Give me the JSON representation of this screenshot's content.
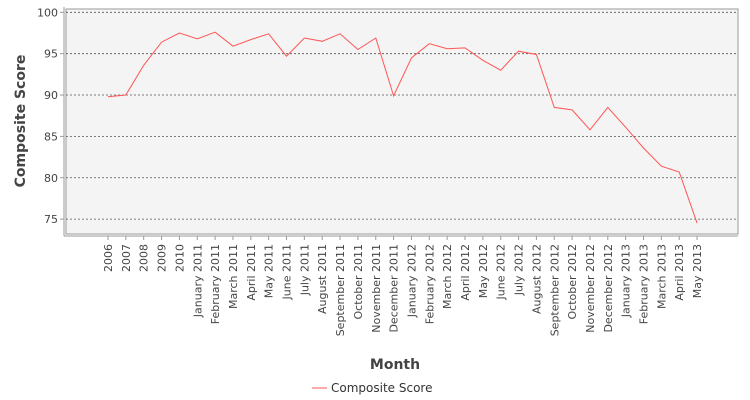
{
  "chart_data": {
    "type": "line",
    "title": "",
    "xlabel": "Month",
    "ylabel": "Composite Score",
    "ylim": [
      73.2,
      100.4
    ],
    "yticks": [
      75,
      80,
      85,
      90,
      95,
      100
    ],
    "grid": true,
    "legend_position": "bottom-center",
    "categories": [
      "2006",
      "2007",
      "2008",
      "2009",
      "2010",
      "January 2011",
      "February 2011",
      "March 2011",
      "April 2011",
      "May 2011",
      "June 2011",
      "July 2011",
      "August 2011",
      "September 2011",
      "October 2011",
      "November 2011",
      "December 2011",
      "January 2012",
      "February 2012",
      "March 2012",
      "April 2012",
      "May 2012",
      "June 2012",
      "July 2012",
      "August 2012",
      "September 2012",
      "October 2012",
      "November 2012",
      "December 2012",
      "January 2013",
      "February 2013",
      "March 2013",
      "April 2013",
      "May 2013"
    ],
    "series": [
      {
        "name": "Composite Score",
        "color": "#ff5555",
        "values": [
          89.8,
          90.0,
          93.6,
          96.4,
          97.5,
          96.8,
          97.6,
          95.9,
          96.7,
          97.4,
          94.7,
          96.9,
          96.5,
          97.4,
          95.5,
          96.9,
          89.9,
          94.5,
          96.2,
          95.6,
          95.7,
          94.2,
          93.0,
          95.3,
          94.9,
          88.5,
          88.2,
          85.8,
          88.5,
          86.1,
          83.6,
          81.4,
          80.7,
          74.5
        ]
      }
    ]
  }
}
